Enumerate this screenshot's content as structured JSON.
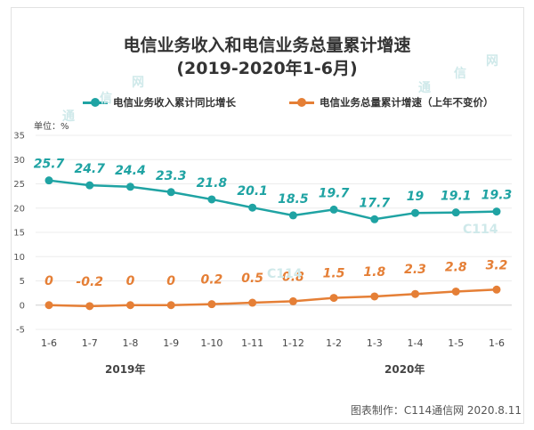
{
  "chart_data": {
    "type": "line",
    "title": "电信业务收入和电信业务总量累计增速",
    "subtitle": "(2019-2020年1-6月)",
    "ylabel": "单位：%",
    "ylim": [
      -5,
      35
    ],
    "yticks": [
      -5,
      0,
      5,
      10,
      15,
      20,
      25,
      30,
      35
    ],
    "categories": [
      "1-6",
      "1-7",
      "1-8",
      "1-9",
      "1-10",
      "1-11",
      "1-12",
      "1-2",
      "1-3",
      "1-4",
      "1-5",
      "1-6"
    ],
    "year_groups": [
      {
        "label": "2019年"
      },
      {
        "label": "2020年"
      }
    ],
    "series": [
      {
        "name": "电信业务收入累计同比增长",
        "color": "#1fa3a3",
        "values": [
          25.7,
          24.7,
          24.4,
          23.3,
          21.8,
          20.1,
          18.5,
          19.7,
          17.7,
          19,
          19.1,
          19.3
        ],
        "labels": [
          "25.7",
          "24.7",
          "24.4",
          "23.3",
          "21.8",
          "20.1",
          "18.5",
          "19.7",
          "17.7",
          "19",
          "19.1",
          "19.3"
        ]
      },
      {
        "name": "电信业务总量累计增速（上年不变价）",
        "color": "#e57f36",
        "values": [
          0,
          -0.2,
          0,
          0,
          0.2,
          0.5,
          0.8,
          1.5,
          1.8,
          2.3,
          2.8,
          3.2
        ],
        "labels": [
          "0",
          "-0.2",
          "0",
          "0",
          "0.2",
          "0.5",
          "0.8",
          "1.5",
          "1.8",
          "2.3",
          "2.8",
          "3.2"
        ]
      }
    ],
    "grid": true,
    "legend": "top"
  },
  "credit": "图表制作：C114通信网 2020.8.11",
  "watermark": {
    "text1": "通",
    "text2": "信",
    "text3": "网",
    "logo": "C114"
  }
}
